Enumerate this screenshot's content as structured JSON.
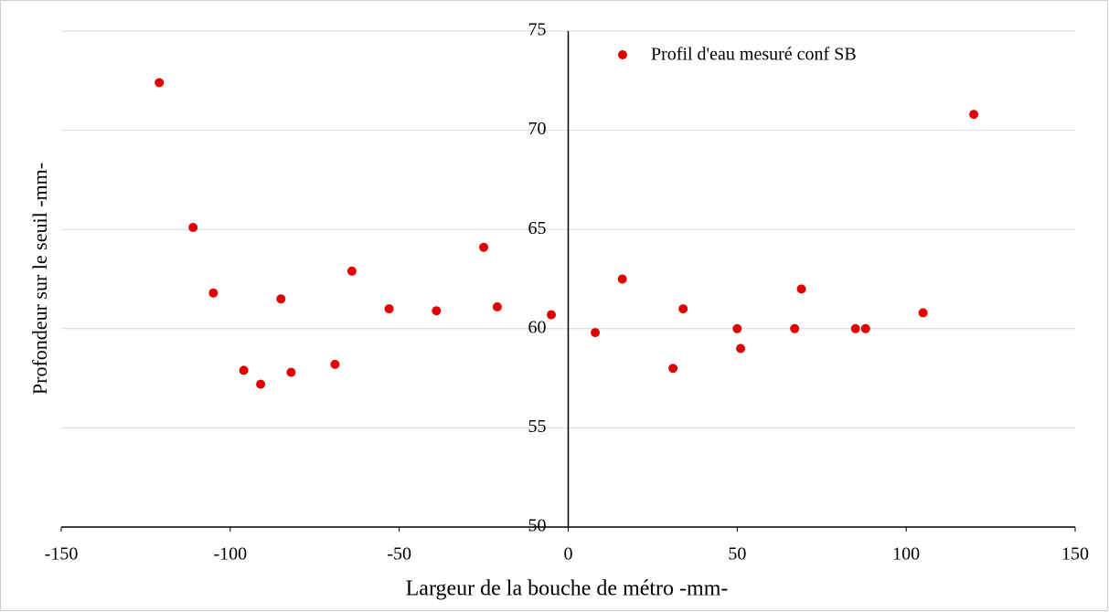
{
  "chart_data": {
    "type": "scatter",
    "xlabel": "Largeur de la bouche de métro -mm-",
    "ylabel": "Profondeur sur le seuil -mm-",
    "series": [
      {
        "name": "Profil d'eau mesuré conf SB",
        "color": "#e00000",
        "x": [
          -121,
          -111,
          -105,
          -96,
          -91,
          -85,
          -82,
          -69,
          -64,
          -53,
          -39,
          -25,
          -21,
          -5,
          8,
          16,
          31,
          34,
          50,
          51,
          67,
          69,
          85,
          88,
          105,
          120
        ],
        "values": [
          72.4,
          65.1,
          61.8,
          57.9,
          57.2,
          61.5,
          57.8,
          58.2,
          62.9,
          61.0,
          60.9,
          64.1,
          61.1,
          60.7,
          59.8,
          62.5,
          58.0,
          61.0,
          60.0,
          59.0,
          60.0,
          62.0,
          60.0,
          60.0,
          60.8,
          70.8
        ]
      }
    ],
    "xlim": [
      -150,
      150
    ],
    "xticks": [
      -150,
      -100,
      -50,
      0,
      50,
      100,
      150
    ],
    "ylim": [
      50,
      75
    ],
    "yticks": [
      50,
      55,
      60,
      65,
      70,
      75
    ],
    "grid": true,
    "legend": "top"
  }
}
